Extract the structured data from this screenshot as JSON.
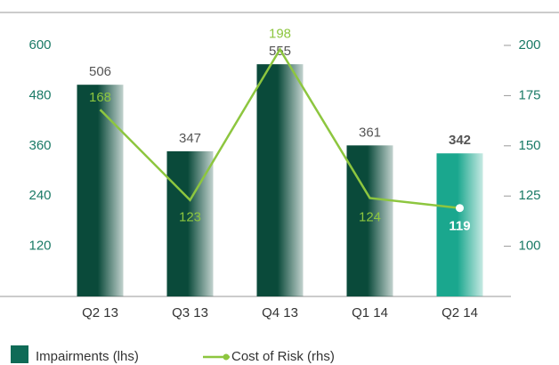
{
  "chart_data": {
    "type": "bar+line",
    "categories": [
      "Q2 13",
      "Q3 13",
      "Q4 13",
      "Q1 14",
      "Q2 14"
    ],
    "series": [
      {
        "name": "Impairments (lhs)",
        "type": "bar",
        "colors": [
          "#0a4a3a",
          "#0a4a3a",
          "#0a4a3a",
          "#0a4a3a",
          "#1aa78e"
        ],
        "color": "#0f6b57",
        "values": [
          506,
          347,
          555,
          361,
          342
        ]
      },
      {
        "name": "Cost of Risk (rhs)",
        "type": "line",
        "axis": "y2",
        "color": "#8dc63f",
        "values": [
          168,
          123,
          198,
          124,
          119
        ]
      }
    ],
    "ylim": [
      0,
      600
    ],
    "yticks": [
      120,
      240,
      360,
      480,
      600
    ],
    "y2lim": [
      75,
      200
    ],
    "y2ticks": [
      100,
      125,
      150,
      175,
      200
    ]
  }
}
